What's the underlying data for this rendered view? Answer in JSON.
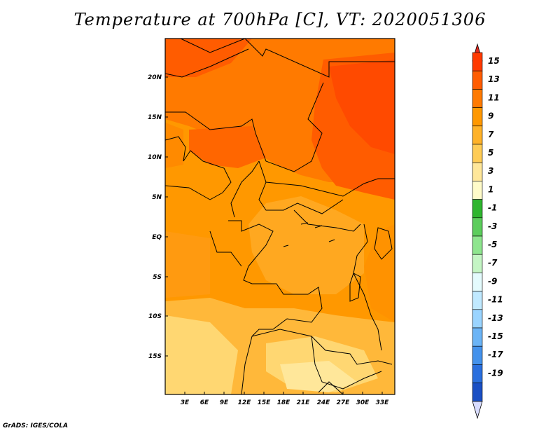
{
  "title": "Temperature at 700hPa [C], VT: 2020051306",
  "credit": "GrADS: IGES/COLA",
  "map": {
    "lat_ticks": [
      "20N",
      "15N",
      "10N",
      "5N",
      "EQ",
      "5S",
      "10S",
      "15S"
    ],
    "lon_ticks": [
      "3E",
      "6E",
      "9E",
      "12E",
      "15E",
      "18E",
      "21E",
      "24E",
      "27E",
      "30E",
      "33E"
    ]
  },
  "colorbar": {
    "labels": [
      "15",
      "13",
      "11",
      "9",
      "7",
      "5",
      "3",
      "1",
      "-1",
      "-3",
      "-5",
      "-7",
      "-9",
      "-11",
      "-13",
      "-15",
      "-17",
      "-19"
    ],
    "colors": [
      "#ff3a00",
      "#ff5c00",
      "#ff7a00",
      "#ff9800",
      "#ffb228",
      "#ffcc55",
      "#ffe79a",
      "#fffbc9",
      "#2fb52f",
      "#5ccd5c",
      "#8ee58e",
      "#c4f5c4",
      "#e4fbfd",
      "#c0e9ff",
      "#9ad4ff",
      "#6bb4f6",
      "#4492ec",
      "#2a6fde",
      "#1a4fc4",
      "#0e2e9c",
      "#02004e",
      "#d7ddff"
    ],
    "top_color": "#e0281e",
    "bottom_color": "#d8dcff"
  }
}
